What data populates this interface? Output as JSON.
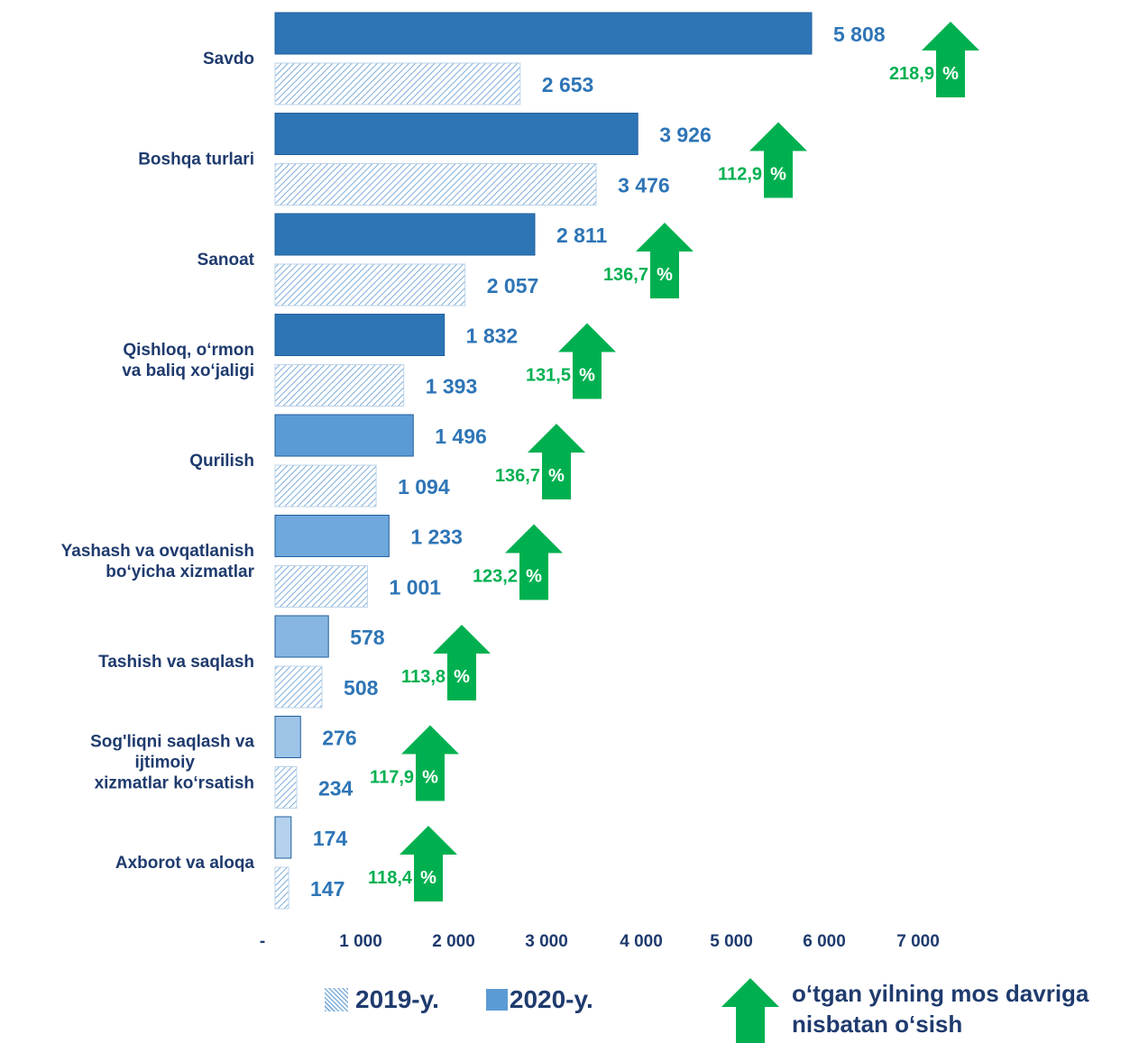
{
  "chart_data": {
    "type": "bar",
    "orientation": "horizontal",
    "categories": [
      "Savdo",
      "Boshqa turlari",
      "Sanoat",
      "Qishloq, o‘rmon\nva baliq xo‘jaligi",
      "Qurilish",
      "Yashash va ovqatlanish\nbo‘yicha xizmatlar",
      "Tashish va saqlash",
      "Sog'liqni saqlash va\nijtimoiy\nxizmatlar ko‘rsatish",
      "Axborot va aloqa"
    ],
    "series": [
      {
        "name": "2020-y.",
        "values": [
          5808,
          3926,
          2811,
          1832,
          1496,
          1233,
          578,
          276,
          174
        ],
        "value_labels": [
          "5 808",
          "3 926",
          "2 811",
          "1 832",
          "1 496",
          "1 233",
          "578",
          "276",
          "174"
        ]
      },
      {
        "name": "2019-y.",
        "values": [
          2653,
          3476,
          2057,
          1393,
          1094,
          1001,
          508,
          234,
          147
        ],
        "value_labels": [
          "2 653",
          "3 476",
          "2 057",
          "1 393",
          "1 094",
          "1 001",
          "508",
          "234",
          "147"
        ]
      }
    ],
    "growth_percent": [
      "218,9",
      "112,9",
      "136,7",
      "131,5",
      "136,7",
      "123,2",
      "113,8",
      "117,9",
      "118,4"
    ],
    "growth_unit": "%",
    "xlim": [
      0,
      7000
    ],
    "xticks": [
      0,
      1000,
      2000,
      3000,
      4000,
      5000,
      6000,
      7000
    ],
    "xtick_labels": [
      "-",
      "1 000",
      "2 000",
      "3 000",
      "4 000",
      "5 000",
      "6 000",
      "7 000"
    ],
    "grid": false,
    "legend_position": "bottom",
    "colors": {
      "bar_2020": [
        "#2e75b6",
        "#2e75b6",
        "#2e75b6",
        "#2e75b6",
        "#5b9bd5",
        "#6fa8dc",
        "#86b6e1",
        "#9ec5e8",
        "#b4d2ee"
      ],
      "hatch_2019": "#7eaedb",
      "value_label": "#2e75b6",
      "category_label": "#1f3b6e",
      "arrow": "#00b050",
      "growth_text": "#00b050"
    }
  },
  "legend": {
    "series_2019_label": "2019-y.",
    "series_2020_label": "2020-y.",
    "growth_label": "o‘tgan yilning mos davriga nisbatan o‘sish"
  }
}
